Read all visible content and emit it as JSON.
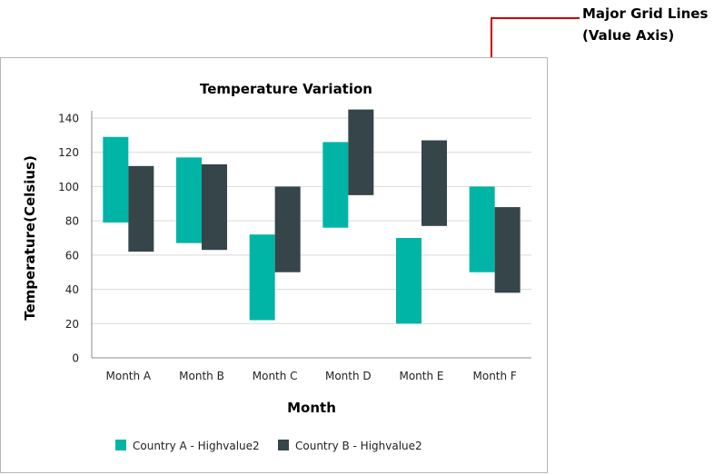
{
  "callout": {
    "line1": "Major Grid Lines",
    "line2": "(Value Axis)",
    "color": "#cc0000"
  },
  "chart_data": {
    "type": "bar",
    "subtype": "range-column",
    "title": "Temperature Variation",
    "xlabel": "Month",
    "ylabel": "Temperature(Celsius)",
    "categories": [
      "Month A",
      "Month B",
      "Month C",
      "Month D",
      "Month E",
      "Month F"
    ],
    "ylim": [
      0,
      140
    ],
    "yticks": [
      0,
      20,
      40,
      60,
      80,
      100,
      120,
      140
    ],
    "grid": "major horizontal",
    "legend_position": "bottom",
    "series": [
      {
        "name": "Country A - Highvalue2",
        "color": "#00b4a6",
        "low": [
          79,
          67,
          22,
          76,
          20,
          50
        ],
        "high": [
          129,
          117,
          72,
          126,
          70,
          100
        ]
      },
      {
        "name": "Country B - Highvalue2",
        "color": "#35454a",
        "low": [
          62,
          63,
          50,
          95,
          77,
          38
        ],
        "high": [
          112,
          113,
          100,
          145,
          127,
          88
        ]
      }
    ]
  }
}
